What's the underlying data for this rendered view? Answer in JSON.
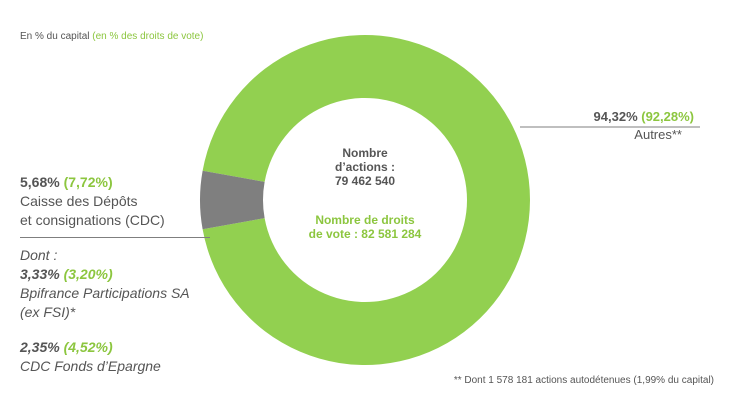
{
  "legend_caption": {
    "prefix": "En % du capital",
    "suffix": "(en % des droits de vote)"
  },
  "center": {
    "actions_line1": "Nombre",
    "actions_line2": "d’actions :",
    "actions_value": "79 462 540",
    "votes_line1": "Nombre de droits",
    "votes_line2": "de vote : 82 581 284"
  },
  "labels": {
    "autres_capital": "94,32%",
    "autres_votes": "(92,28%)",
    "autres_name": "Autres**",
    "cdc_capital": "5,68%",
    "cdc_votes": "(7,72%)",
    "cdc_name_line1": "Caisse des Dépôts",
    "cdc_name_line2": "et consignations (CDC)",
    "dont": "Dont :",
    "bpi_capital": "3,33%",
    "bpi_votes": "(3,20%)",
    "bpi_name_line1": "Bpifrance Participations SA",
    "bpi_name_line2": "(ex FSI)*",
    "fonds_capital": "2,35%",
    "fonds_votes": "(4,52%)",
    "fonds_name": "CDC Fonds d’Epargne"
  },
  "footnote": "** Dont 1 578 181 actions autodétenues  (1,99% du capital)",
  "colors": {
    "autres": "#92d050",
    "cdc": "#7f7f7f",
    "accent_text": "#8cc63f",
    "text": "#555555",
    "leader": "#7f7f7f"
  },
  "chart_data": {
    "type": "pie",
    "variant": "donut",
    "categories": [
      "Autres**",
      "Caisse des Dépôts et consignations (CDC)"
    ],
    "series": [
      {
        "name": "En % du capital",
        "values": [
          94.32,
          5.68
        ]
      },
      {
        "name": "(en % des droits de vote)",
        "values": [
          92.28,
          7.72
        ]
      }
    ]
  }
}
